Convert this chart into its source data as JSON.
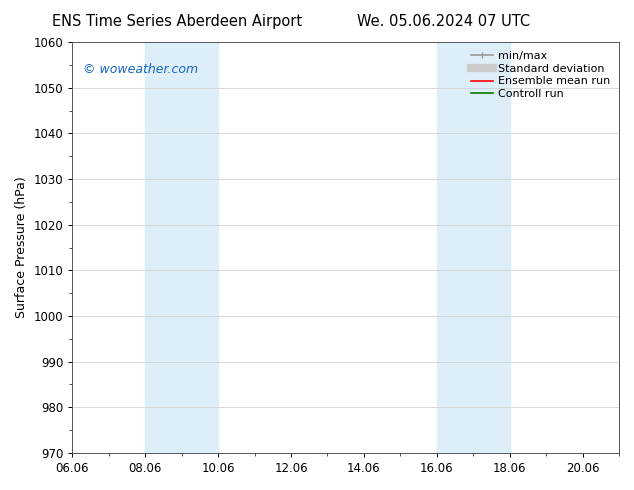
{
  "title_left": "ENS Time Series Aberdeen Airport",
  "title_right": "We. 05.06.2024 07 UTC",
  "ylabel": "Surface Pressure (hPa)",
  "ylim": [
    970,
    1060
  ],
  "yticks": [
    970,
    980,
    990,
    1000,
    1010,
    1020,
    1030,
    1040,
    1050,
    1060
  ],
  "xlim_start": 0.0,
  "xlim_end": 15.0,
  "xtick_labels": [
    "06.06",
    "08.06",
    "10.06",
    "12.06",
    "14.06",
    "16.06",
    "18.06",
    "20.06"
  ],
  "xtick_positions": [
    0.0,
    2.0,
    4.0,
    6.0,
    8.0,
    10.0,
    12.0,
    14.0
  ],
  "shaded_bands": [
    {
      "x_start": 2.0,
      "x_end": 4.0,
      "color": "#ddeef8"
    },
    {
      "x_start": 10.0,
      "x_end": 11.0,
      "color": "#ddeef8"
    },
    {
      "x_start": 11.0,
      "x_end": 12.0,
      "color": "#ddeef8"
    }
  ],
  "watermark_text": "© woweather.com",
  "watermark_color": "#1565C0",
  "watermark_fontsize": 9,
  "legend_items": [
    {
      "label": "min/max",
      "color": "#999999",
      "linewidth": 1.2
    },
    {
      "label": "Standard deviation",
      "color": "#cccccc",
      "linewidth": 6
    },
    {
      "label": "Ensemble mean run",
      "color": "#ff0000",
      "linewidth": 1.2
    },
    {
      "label": "Controll run",
      "color": "#008000",
      "linewidth": 1.2
    }
  ],
  "background_color": "#ffffff",
  "title_fontsize": 10.5,
  "axis_label_fontsize": 9,
  "tick_fontsize": 8.5,
  "legend_fontsize": 8
}
